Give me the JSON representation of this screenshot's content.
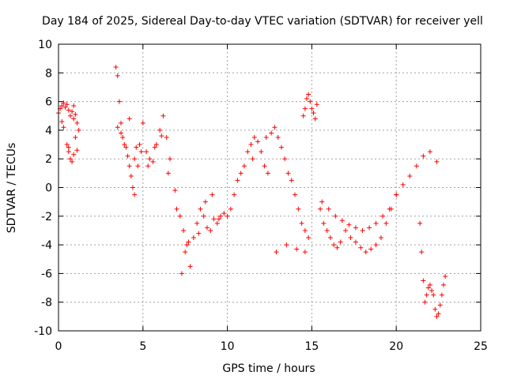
{
  "chart_data": {
    "type": "scatter",
    "title": "Day 184 of 2025, Sidereal Day-to-day VTEC variation (SDTVAR) for receiver yell",
    "xlabel": "GPS time / hours",
    "ylabel": "SDTVAR / TECUs",
    "xlim": [
      0,
      25
    ],
    "ylim": [
      -10,
      10
    ],
    "xticks": [
      0,
      5,
      10,
      15,
      20,
      25
    ],
    "yticks": [
      -10,
      -8,
      -6,
      -4,
      -2,
      0,
      2,
      4,
      6,
      8,
      10
    ],
    "grid": true,
    "marker": "+",
    "series_color": "#ff0000",
    "series": [
      {
        "name": "SDTVAR",
        "x": [
          0.0,
          0.1,
          0.2,
          0.3,
          0.4,
          0.5,
          0.6,
          0.7,
          0.8,
          0.9,
          1.0,
          1.1,
          1.2,
          0.5,
          0.6,
          0.7,
          0.8,
          0.9,
          1.0,
          0.2,
          0.3,
          0.6,
          0.9,
          1.1,
          3.4,
          3.5,
          3.6,
          3.7,
          3.8,
          3.9,
          4.0,
          4.1,
          4.2,
          4.3,
          4.4,
          4.5,
          4.6,
          4.7,
          4.8,
          4.9,
          3.5,
          3.7,
          4.2,
          4.5,
          5.0,
          5.2,
          5.4,
          5.6,
          5.8,
          6.0,
          6.2,
          6.4,
          6.6,
          5.3,
          5.7,
          6.1,
          6.5,
          6.9,
          7.0,
          7.2,
          7.4,
          7.6,
          7.8,
          8.0,
          8.2,
          8.4,
          8.6,
          8.8,
          9.0,
          9.2,
          9.4,
          9.6,
          9.8,
          7.3,
          7.5,
          7.7,
          8.3,
          8.7,
          9.1,
          9.5,
          10.0,
          10.2,
          10.4,
          10.6,
          10.8,
          11.0,
          11.2,
          11.4,
          11.6,
          11.8,
          12.0,
          12.2,
          12.4,
          12.6,
          12.8,
          13.0,
          13.2,
          13.4,
          13.6,
          13.8,
          14.0,
          14.2,
          14.4,
          14.6,
          14.8,
          11.5,
          12.3,
          12.9,
          13.5,
          14.1,
          14.6,
          14.5,
          14.6,
          14.7,
          14.8,
          14.9,
          15.0,
          15.1,
          15.2,
          15.3,
          15.5,
          15.7,
          15.9,
          16.1,
          16.3,
          16.5,
          16.7,
          17.0,
          17.3,
          17.6,
          17.9,
          18.2,
          18.5,
          18.8,
          19.1,
          19.4,
          19.7,
          20.0,
          15.6,
          16.0,
          16.4,
          16.8,
          17.2,
          17.6,
          18.0,
          18.4,
          18.8,
          19.2,
          19.6,
          20.0,
          20.4,
          20.8,
          21.2,
          21.6,
          22.0,
          22.4,
          21.4,
          21.5,
          21.6,
          21.7,
          21.8,
          21.9,
          22.0,
          22.1,
          22.2,
          22.3,
          22.4,
          22.5,
          22.6,
          22.7,
          22.8,
          22.9
        ],
        "y": [
          5.2,
          5.5,
          5.7,
          5.9,
          5.6,
          5.8,
          5.4,
          5.0,
          5.3,
          4.8,
          5.1,
          4.5,
          4.0,
          3.0,
          2.5,
          2.0,
          1.8,
          2.3,
          3.5,
          4.6,
          4.2,
          2.8,
          5.7,
          2.6,
          8.4,
          7.8,
          6.0,
          4.5,
          3.5,
          3.0,
          2.8,
          2.2,
          1.5,
          0.8,
          0.0,
          -0.5,
          2.8,
          1.5,
          3.0,
          2.5,
          4.2,
          3.8,
          4.8,
          2.0,
          4.5,
          2.5,
          2.0,
          1.8,
          3.0,
          4.0,
          5.0,
          3.5,
          2.0,
          1.5,
          2.8,
          3.6,
          1.0,
          -0.2,
          -1.5,
          -2.0,
          -3.0,
          -4.0,
          -5.5,
          -3.5,
          -2.5,
          -1.5,
          -2.0,
          -2.8,
          -3.0,
          -2.2,
          -2.5,
          -2.0,
          -1.8,
          -6.0,
          -4.5,
          -3.8,
          -3.2,
          -1.0,
          -0.5,
          -2.2,
          -2.0,
          -1.5,
          -0.5,
          0.5,
          1.0,
          1.5,
          2.5,
          3.0,
          3.5,
          3.2,
          2.5,
          1.5,
          1.0,
          3.8,
          4.2,
          3.5,
          2.8,
          2.0,
          1.0,
          0.5,
          -0.5,
          -1.5,
          -2.5,
          -3.0,
          -3.5,
          2.0,
          3.5,
          -4.5,
          -4.0,
          -4.3,
          -4.5,
          5.0,
          5.5,
          6.2,
          6.5,
          6.0,
          5.5,
          5.2,
          4.8,
          5.8,
          -1.5,
          -2.5,
          -3.0,
          -3.5,
          -4.0,
          -4.2,
          -3.8,
          -3.0,
          -3.5,
          -3.8,
          -4.2,
          -4.5,
          -4.3,
          -4.0,
          -3.5,
          -2.5,
          -1.5,
          -0.5,
          -1.0,
          -1.5,
          -2.0,
          -2.3,
          -2.6,
          -2.8,
          -3.0,
          -2.8,
          -2.5,
          -2.0,
          -1.5,
          -0.5,
          0.2,
          0.8,
          1.5,
          2.2,
          2.5,
          1.8,
          -2.5,
          -4.5,
          -6.5,
          -8.0,
          -7.5,
          -7.0,
          -6.8,
          -7.2,
          -7.5,
          -8.5,
          -9.0,
          -8.8,
          -8.2,
          -7.5,
          -6.8,
          -6.2
        ]
      }
    ]
  }
}
